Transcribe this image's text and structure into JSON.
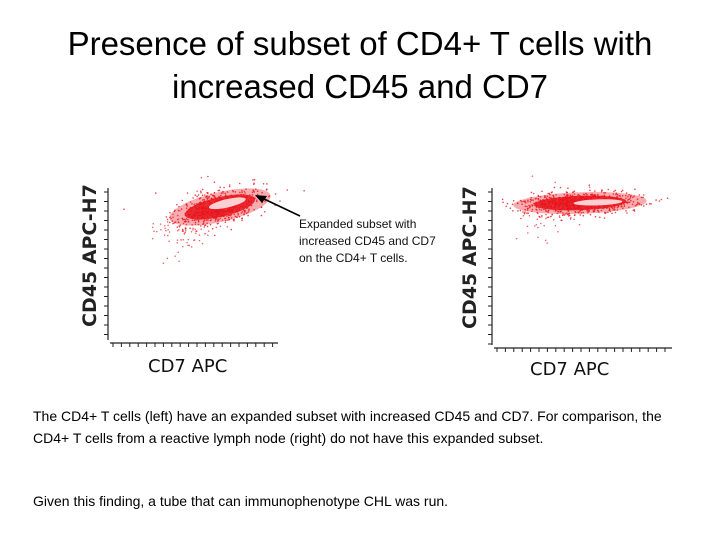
{
  "slide": {
    "title_line1": "Presence of subset of CD4+ T cells with",
    "title_line2": "increased CD45 and CD7",
    "annotation": "Expanded subset with increased CD45 and CD7 on the CD4+ T cells.",
    "caption": "The CD4+ T cells (left) have an expanded subset with increased CD45 and CD7. For comparison, the CD4+ T cells from a reactive lymph node (right) do not have this expanded subset.",
    "caption2": "Given this finding, a tube that can immunophenotype CHL was run."
  },
  "plots": {
    "left": {
      "ylabel": "CD45 APC-H7",
      "xlabel": "CD7 APC",
      "dot_color": "#e8141c",
      "core_color": "#ffd9da"
    },
    "right": {
      "ylabel": "CD45 APC-H7",
      "xlabel": "CD7 APC",
      "dot_color": "#e8141c",
      "core_color": "#ffd9da"
    }
  }
}
